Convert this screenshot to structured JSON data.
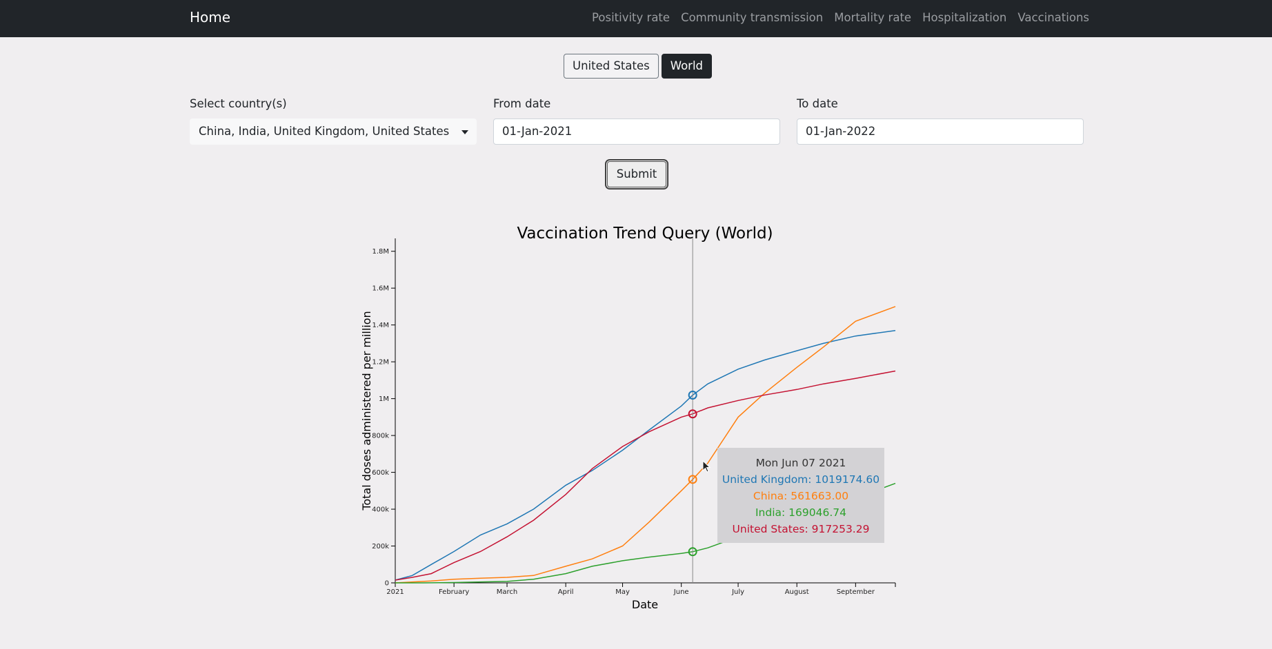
{
  "navbar": {
    "brand": "Home",
    "links": [
      "Positivity rate",
      "Community transmission",
      "Mortality rate",
      "Hospitalization",
      "Vaccinations"
    ]
  },
  "region_toggle": {
    "options": [
      "United States",
      "World"
    ],
    "selected": "World"
  },
  "form": {
    "country_label": "Select country(s)",
    "country_value": "China, India, United Kingdom, United States",
    "from_label": "From date",
    "from_value": "01-Jan-2021",
    "to_label": "To date",
    "to_value": "01-Jan-2022",
    "submit_label": "Submit"
  },
  "tooltip": {
    "date": "Mon Jun 07 2021",
    "lines": [
      "United Kingdom: 1019174.60",
      "China: 561663.00",
      "India: 169046.74",
      "United States: 917253.29"
    ]
  },
  "colors": {
    "United Kingdom": "#1f77b4",
    "China": "#ff7f0e",
    "India": "#2ca02c",
    "United States": "#c41232"
  },
  "chart_data": {
    "type": "line",
    "title": "Vaccination Trend Query (World)",
    "xlabel": "Date",
    "ylabel": "Total doses administered per million",
    "x_tick_labels": [
      "2021",
      "February",
      "March",
      "April",
      "May",
      "June",
      "July",
      "August",
      "September"
    ],
    "y_tick_labels": [
      "0",
      "200k",
      "400k",
      "600k",
      "800k",
      "1M",
      "1.2M",
      "1.4M",
      "1.6M",
      "1.8M"
    ],
    "ylim": [
      0,
      1870000
    ],
    "xlim": [
      "2021-01-01",
      "2021-09-22"
    ],
    "hover_date": "2021-06-07",
    "series": [
      {
        "name": "United Kingdom",
        "x": [
          "2021-01-01",
          "2021-01-10",
          "2021-01-20",
          "2021-02-01",
          "2021-02-15",
          "2021-03-01",
          "2021-03-15",
          "2021-04-01",
          "2021-04-15",
          "2021-05-01",
          "2021-05-15",
          "2021-06-01",
          "2021-06-07",
          "2021-06-15",
          "2021-07-01",
          "2021-07-15",
          "2021-08-01",
          "2021-08-15",
          "2021-09-01",
          "2021-09-22"
        ],
        "y": [
          15000,
          40000,
          100000,
          170000,
          260000,
          320000,
          400000,
          530000,
          610000,
          720000,
          830000,
          960000,
          1019175,
          1080000,
          1160000,
          1210000,
          1260000,
          1300000,
          1340000,
          1370000
        ]
      },
      {
        "name": "China",
        "x": [
          "2021-01-01",
          "2021-01-20",
          "2021-02-01",
          "2021-02-15",
          "2021-03-01",
          "2021-03-15",
          "2021-04-01",
          "2021-04-15",
          "2021-05-01",
          "2021-05-15",
          "2021-06-01",
          "2021-06-07",
          "2021-06-15",
          "2021-07-01",
          "2021-07-15",
          "2021-08-01",
          "2021-08-15",
          "2021-09-01",
          "2021-09-22"
        ],
        "y": [
          0,
          10000,
          20000,
          25000,
          30000,
          40000,
          90000,
          130000,
          200000,
          330000,
          500000,
          561663,
          650000,
          900000,
          1030000,
          1170000,
          1280000,
          1420000,
          1500000
        ]
      },
      {
        "name": "India",
        "x": [
          "2021-01-01",
          "2021-01-16",
          "2021-02-01",
          "2021-03-01",
          "2021-03-15",
          "2021-04-01",
          "2021-04-15",
          "2021-05-01",
          "2021-05-15",
          "2021-06-01",
          "2021-06-07",
          "2021-06-15",
          "2021-07-01",
          "2021-07-15",
          "2021-08-01",
          "2021-08-15",
          "2021-09-01",
          "2021-09-22"
        ],
        "y": [
          0,
          0,
          2000,
          8000,
          20000,
          50000,
          90000,
          120000,
          140000,
          160000,
          169047,
          190000,
          250000,
          300000,
          350000,
          400000,
          460000,
          540000
        ]
      },
      {
        "name": "United States",
        "x": [
          "2021-01-01",
          "2021-01-10",
          "2021-01-20",
          "2021-02-01",
          "2021-02-15",
          "2021-03-01",
          "2021-03-15",
          "2021-04-01",
          "2021-04-15",
          "2021-05-01",
          "2021-05-15",
          "2021-06-01",
          "2021-06-07",
          "2021-06-15",
          "2021-07-01",
          "2021-07-15",
          "2021-08-01",
          "2021-08-15",
          "2021-09-01",
          "2021-09-22"
        ],
        "y": [
          15000,
          30000,
          50000,
          110000,
          170000,
          250000,
          340000,
          480000,
          620000,
          740000,
          820000,
          900000,
          917253,
          950000,
          990000,
          1020000,
          1050000,
          1080000,
          1110000,
          1150000
        ]
      }
    ]
  }
}
